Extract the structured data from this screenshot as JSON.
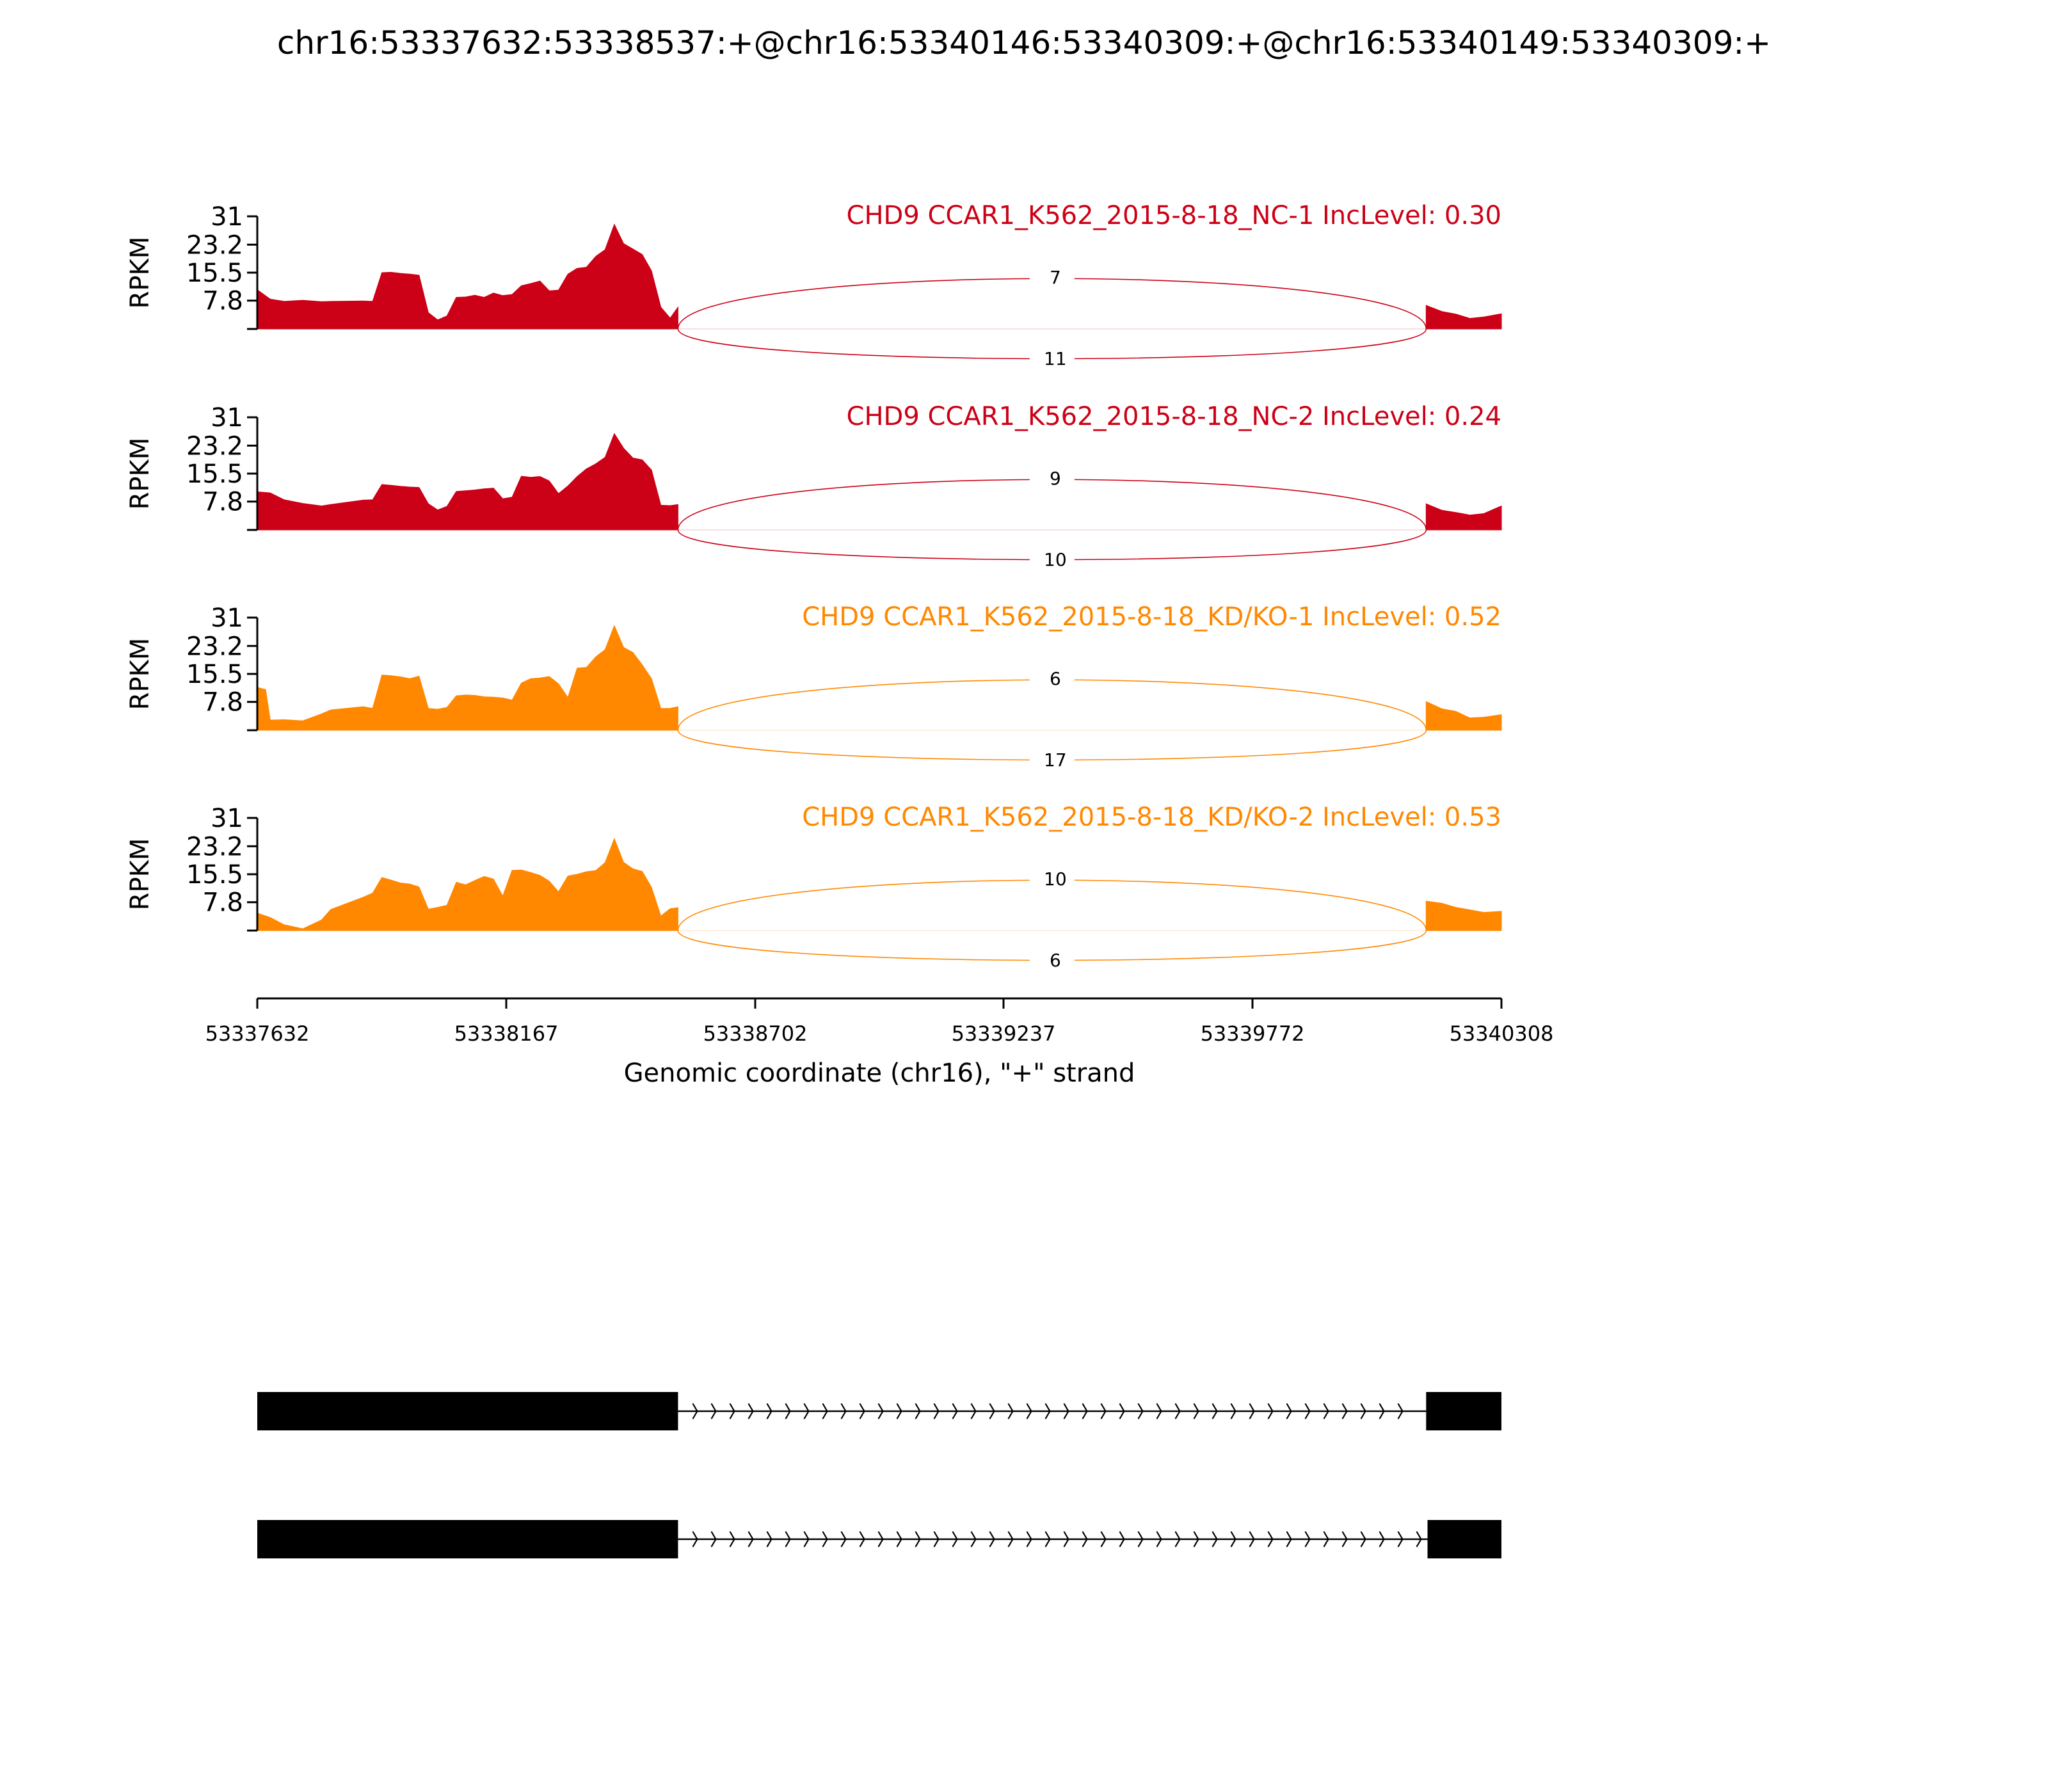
{
  "title": "chr16:53337632:53338537:+@chr16:53340146:53340309:+@chr16:53340149:53340309:+",
  "chart_data": {
    "type": "area",
    "xlabel": "Genomic coordinate (chr16), \"+\" strand",
    "ylabel": "RPKM",
    "xlim": [
      53337632,
      53340308
    ],
    "ylim": [
      0,
      31
    ],
    "xticks": [
      "53337632",
      "53338167",
      "53338702",
      "53339237",
      "53339772",
      "53340308"
    ],
    "yticks": [
      "31",
      "23.2",
      "15.5",
      "7.8"
    ],
    "exons": [
      {
        "start": 53337632,
        "end": 53338537
      },
      {
        "start": 53340146,
        "end": 53340309
      }
    ],
    "panels": [
      {
        "label": "CHD9 CCAR1_K562_2015-8-18_NC-1 IncLevel: 0.30",
        "color": "#cc0016",
        "junction_upper": "7",
        "junction_lower": "11",
        "x": [
          53337632,
          53337660,
          53337690,
          53337730,
          53337770,
          53337790,
          53337860,
          53337880,
          53337900,
          53337920,
          53337940,
          53337960,
          53337980,
          53338000,
          53338020,
          53338040,
          53338060,
          53338080,
          53338100,
          53338120,
          53338140,
          53338160,
          53338180,
          53338200,
          53338220,
          53338240,
          53338260,
          53338280,
          53338300,
          53338320,
          53338340,
          53338360,
          53338380,
          53338400,
          53338420,
          53338440,
          53338460,
          53338480,
          53338500,
          53338520,
          53338537,
          53340146,
          53340180,
          53340210,
          53340240,
          53340270,
          53340308
        ],
        "y": [
          10.8,
          8.2,
          7.6,
          7.9,
          7.5,
          7.6,
          7.7,
          7.6,
          15.5,
          15.6,
          15.3,
          15.1,
          14.8,
          4.5,
          2.5,
          3.6,
          8.7,
          8.8,
          9.3,
          8.7,
          9.9,
          9.2,
          9.5,
          11.9,
          12.5,
          13.2,
          10.5,
          10.7,
          15.1,
          16.7,
          17.0,
          20.0,
          21.8,
          28.8,
          23.5,
          22.0,
          20.5,
          16.0,
          6.0,
          3.0,
          6.0,
          6.5,
          4.8,
          4.1,
          2.9,
          3.3,
          4.2
        ]
      },
      {
        "label": "CHD9 CCAR1_K562_2015-8-18_NC-2 IncLevel: 0.24",
        "color": "#cc0016",
        "junction_upper": "9",
        "junction_lower": "10",
        "x": [
          53337632,
          53337660,
          53337690,
          53337730,
          53337770,
          53337790,
          53337860,
          53337880,
          53337900,
          53337920,
          53337940,
          53337960,
          53337980,
          53338000,
          53338020,
          53338040,
          53338060,
          53338080,
          53338100,
          53338120,
          53338140,
          53338160,
          53338180,
          53338200,
          53338220,
          53338240,
          53338260,
          53338280,
          53338300,
          53338320,
          53338340,
          53338360,
          53338380,
          53338400,
          53338420,
          53338440,
          53338460,
          53338480,
          53338500,
          53338520,
          53338537,
          53340146,
          53340180,
          53340210,
          53340240,
          53340270,
          53340308
        ],
        "y": [
          10.5,
          10.2,
          8.3,
          7.3,
          6.6,
          7.0,
          8.2,
          8.3,
          12.5,
          12.3,
          12.0,
          11.8,
          11.7,
          7.2,
          5.5,
          6.5,
          10.6,
          10.8,
          11.0,
          11.3,
          11.5,
          8.6,
          9.0,
          14.8,
          14.5,
          14.7,
          13.5,
          10.0,
          12.1,
          14.7,
          16.8,
          18.2,
          20.0,
          26.5,
          22.5,
          19.8,
          19.3,
          16.5,
          6.8,
          6.7,
          7.0,
          7.2,
          5.4,
          4.8,
          4.1,
          4.5,
          6.6
        ]
      },
      {
        "label": "CHD9 CCAR1_K562_2015-8-18_KD/KO-1 IncLevel: 0.52",
        "color": "#ff8800",
        "junction_upper": "6",
        "junction_lower": "17",
        "x": [
          53337632,
          53337650,
          53337660,
          53337690,
          53337730,
          53337770,
          53337790,
          53337860,
          53337880,
          53337900,
          53337920,
          53337940,
          53337960,
          53337980,
          53338000,
          53338020,
          53338040,
          53338060,
          53338080,
          53338100,
          53338120,
          53338140,
          53338160,
          53338180,
          53338200,
          53338220,
          53338240,
          53338260,
          53338280,
          53338300,
          53338320,
          53338340,
          53338360,
          53338380,
          53338400,
          53338420,
          53338440,
          53338460,
          53338480,
          53338500,
          53338520,
          53338537,
          53340146,
          53340180,
          53340210,
          53340240,
          53340270,
          53340308
        ],
        "y": [
          11.8,
          11.2,
          2.8,
          2.9,
          2.6,
          4.5,
          5.6,
          6.5,
          6.0,
          15.2,
          15.0,
          14.7,
          14.2,
          14.9,
          6.0,
          5.8,
          6.3,
          9.5,
          9.7,
          9.6,
          9.2,
          9.1,
          8.9,
          8.3,
          13.0,
          14.2,
          14.4,
          14.8,
          12.8,
          9.0,
          17.1,
          17.3,
          20.2,
          22.2,
          28.8,
          22.8,
          21.4,
          18.0,
          14.2,
          6.0,
          6.0,
          6.5,
          7.9,
          5.9,
          5.2,
          3.4,
          3.6,
          4.3
        ]
      },
      {
        "label": "CHD9 CCAR1_K562_2015-8-18_KD/KO-2 IncLevel: 0.53",
        "color": "#ff8800",
        "junction_upper": "10",
        "junction_lower": "6",
        "x": [
          53337632,
          53337660,
          53337690,
          53337730,
          53337770,
          53337790,
          53337860,
          53337880,
          53337900,
          53337920,
          53337940,
          53337960,
          53337980,
          53338000,
          53338020,
          53338040,
          53338060,
          53338080,
          53338100,
          53338120,
          53338140,
          53338160,
          53338180,
          53338200,
          53338220,
          53338240,
          53338260,
          53338280,
          53338300,
          53338320,
          53338340,
          53338360,
          53338380,
          53338400,
          53338420,
          53338440,
          53338460,
          53338480,
          53338500,
          53338520,
          53338537,
          53340146,
          53340180,
          53340210,
          53340240,
          53340270,
          53340308
        ],
        "y": [
          4.8,
          3.6,
          1.6,
          0.5,
          2.9,
          5.8,
          9.2,
          10.3,
          14.6,
          13.9,
          13.1,
          12.8,
          12.0,
          5.9,
          6.4,
          7.0,
          13.3,
          12.6,
          13.8,
          14.9,
          14.2,
          9.5,
          16.6,
          16.7,
          16.0,
          15.2,
          13.6,
          10.7,
          15.0,
          15.5,
          16.2,
          16.5,
          18.7,
          25.3,
          18.8,
          17.0,
          16.3,
          11.9,
          4.0,
          6.0,
          6.3,
          8.1,
          7.5,
          6.4,
          5.7,
          5.0,
          5.3
        ]
      }
    ],
    "transcripts": [
      {
        "exons": [
          [
            53337632,
            53338537
          ],
          [
            53340146,
            53340308
          ]
        ]
      },
      {
        "exons": [
          [
            53337632,
            53338537
          ],
          [
            53340149,
            53340308
          ]
        ]
      }
    ]
  }
}
